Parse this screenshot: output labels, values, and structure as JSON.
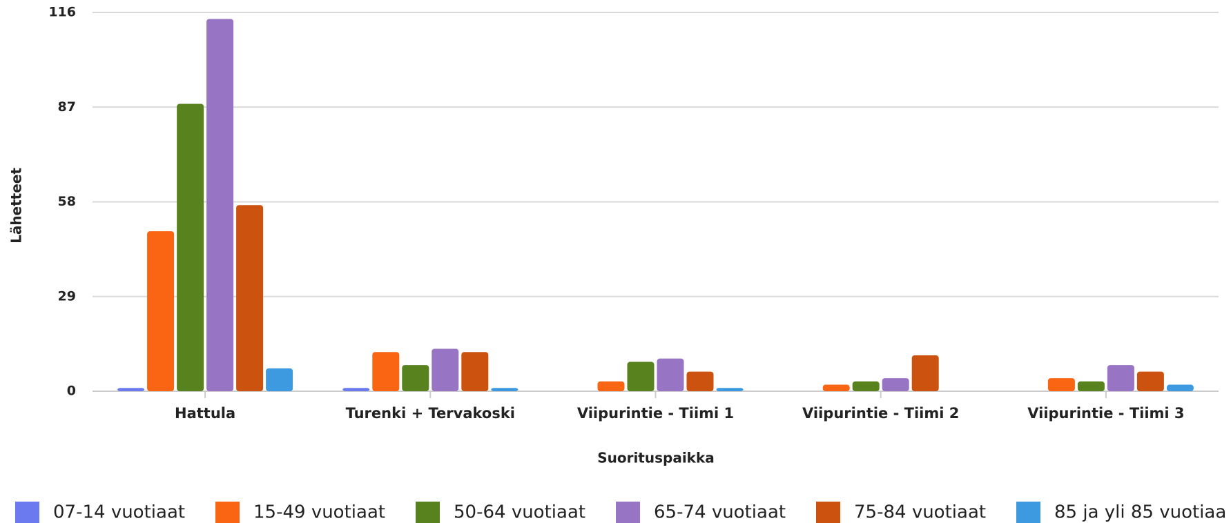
{
  "chart_data": {
    "type": "bar",
    "x_label": "Suorituspaikka",
    "y_label": "Lähetteet",
    "categories": [
      "Hattula",
      "Turenki + Tervakoski",
      "Viipurintie - Tiimi 1",
      "Viipurintie - Tiimi 2",
      "Viipurintie - Tiimi 3"
    ],
    "series": [
      {
        "name": "07-14 vuotiaat",
        "color": "#6b7bef",
        "values": [
          1,
          1,
          null,
          null,
          null
        ]
      },
      {
        "name": "15-49 vuotiaat",
        "color": "#fa6513",
        "values": [
          49,
          12,
          3,
          2,
          4
        ]
      },
      {
        "name": "50-64 vuotiaat",
        "color": "#57821e",
        "values": [
          88,
          8,
          9,
          3,
          3
        ]
      },
      {
        "name": "65-74 vuotiaat",
        "color": "#9874c4",
        "values": [
          114,
          13,
          10,
          4,
          8
        ]
      },
      {
        "name": "75-84 vuotiaat",
        "color": "#cc5210",
        "values": [
          57,
          12,
          6,
          11,
          6
        ]
      },
      {
        "name": "85 ja yli 85 vuotiaa",
        "color": "#3d9ae0",
        "values": [
          7,
          1,
          1,
          null,
          2
        ]
      }
    ],
    "ylim": [
      0,
      116
    ],
    "yticks": [
      0,
      29,
      58,
      87,
      116
    ],
    "grid": true,
    "legend": "bottom"
  }
}
